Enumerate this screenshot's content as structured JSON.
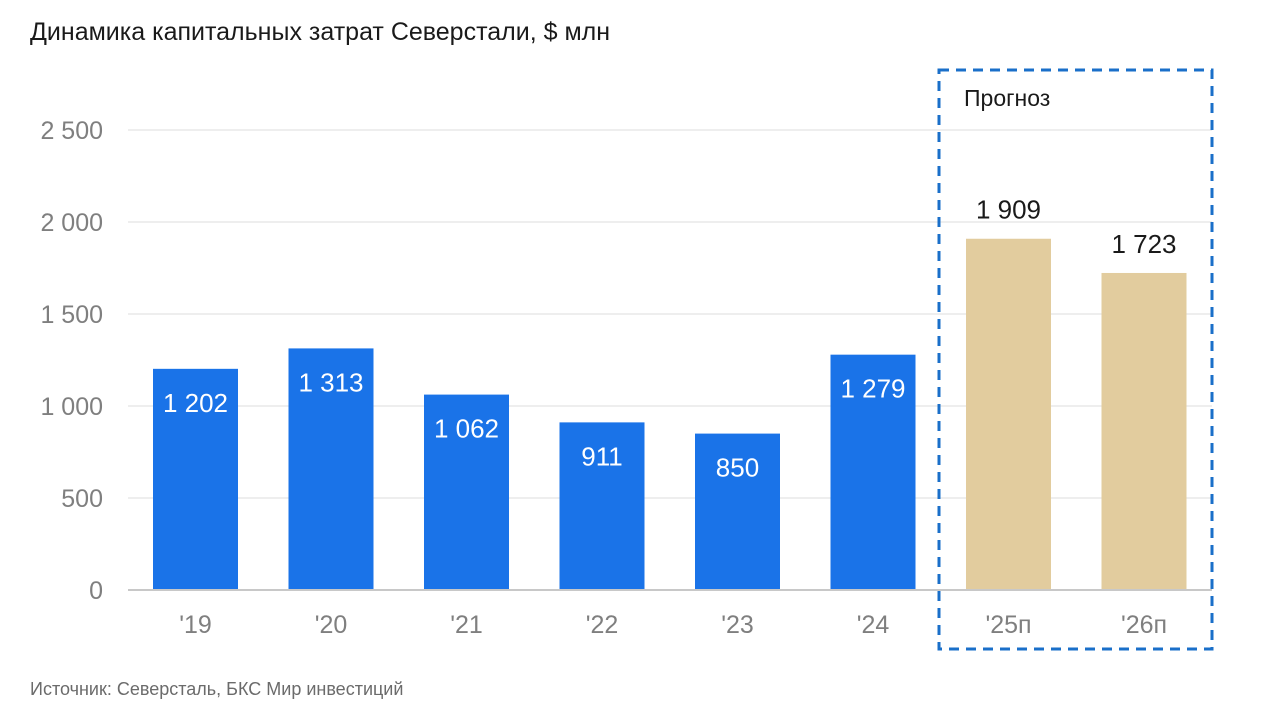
{
  "title": "Динамика капитальных затрат Северстали, $ млн",
  "source": "Источник: Северсталь, БКС Мир инвестиций",
  "forecast_label": "Прогноз",
  "colors": {
    "actual": "#1a73e8",
    "forecast": "#e2cc9e",
    "forecast_border": "#1a6fc9",
    "grid": "#dedede",
    "axis": "#c8c8c8"
  },
  "chart_data": {
    "type": "bar",
    "categories": [
      "'19",
      "'20",
      "'21",
      "'22",
      "'23",
      "'24",
      "'25п",
      "'26п"
    ],
    "values": [
      1202,
      1313,
      1062,
      911,
      850,
      1279,
      1909,
      1723
    ],
    "value_labels": [
      "1 202",
      "1 313",
      "1 062",
      "911",
      "850",
      "1 279",
      "1 909",
      "1 723"
    ],
    "forecast": [
      false,
      false,
      false,
      false,
      false,
      false,
      true,
      true
    ],
    "yticks": [
      0,
      500,
      1000,
      1500,
      2000,
      2500
    ],
    "ytick_labels": [
      "0",
      "500",
      "1 000",
      "1 500",
      "2 000",
      "2 500"
    ],
    "ylim": [
      0,
      2500
    ],
    "grid": true,
    "legend": "none"
  }
}
